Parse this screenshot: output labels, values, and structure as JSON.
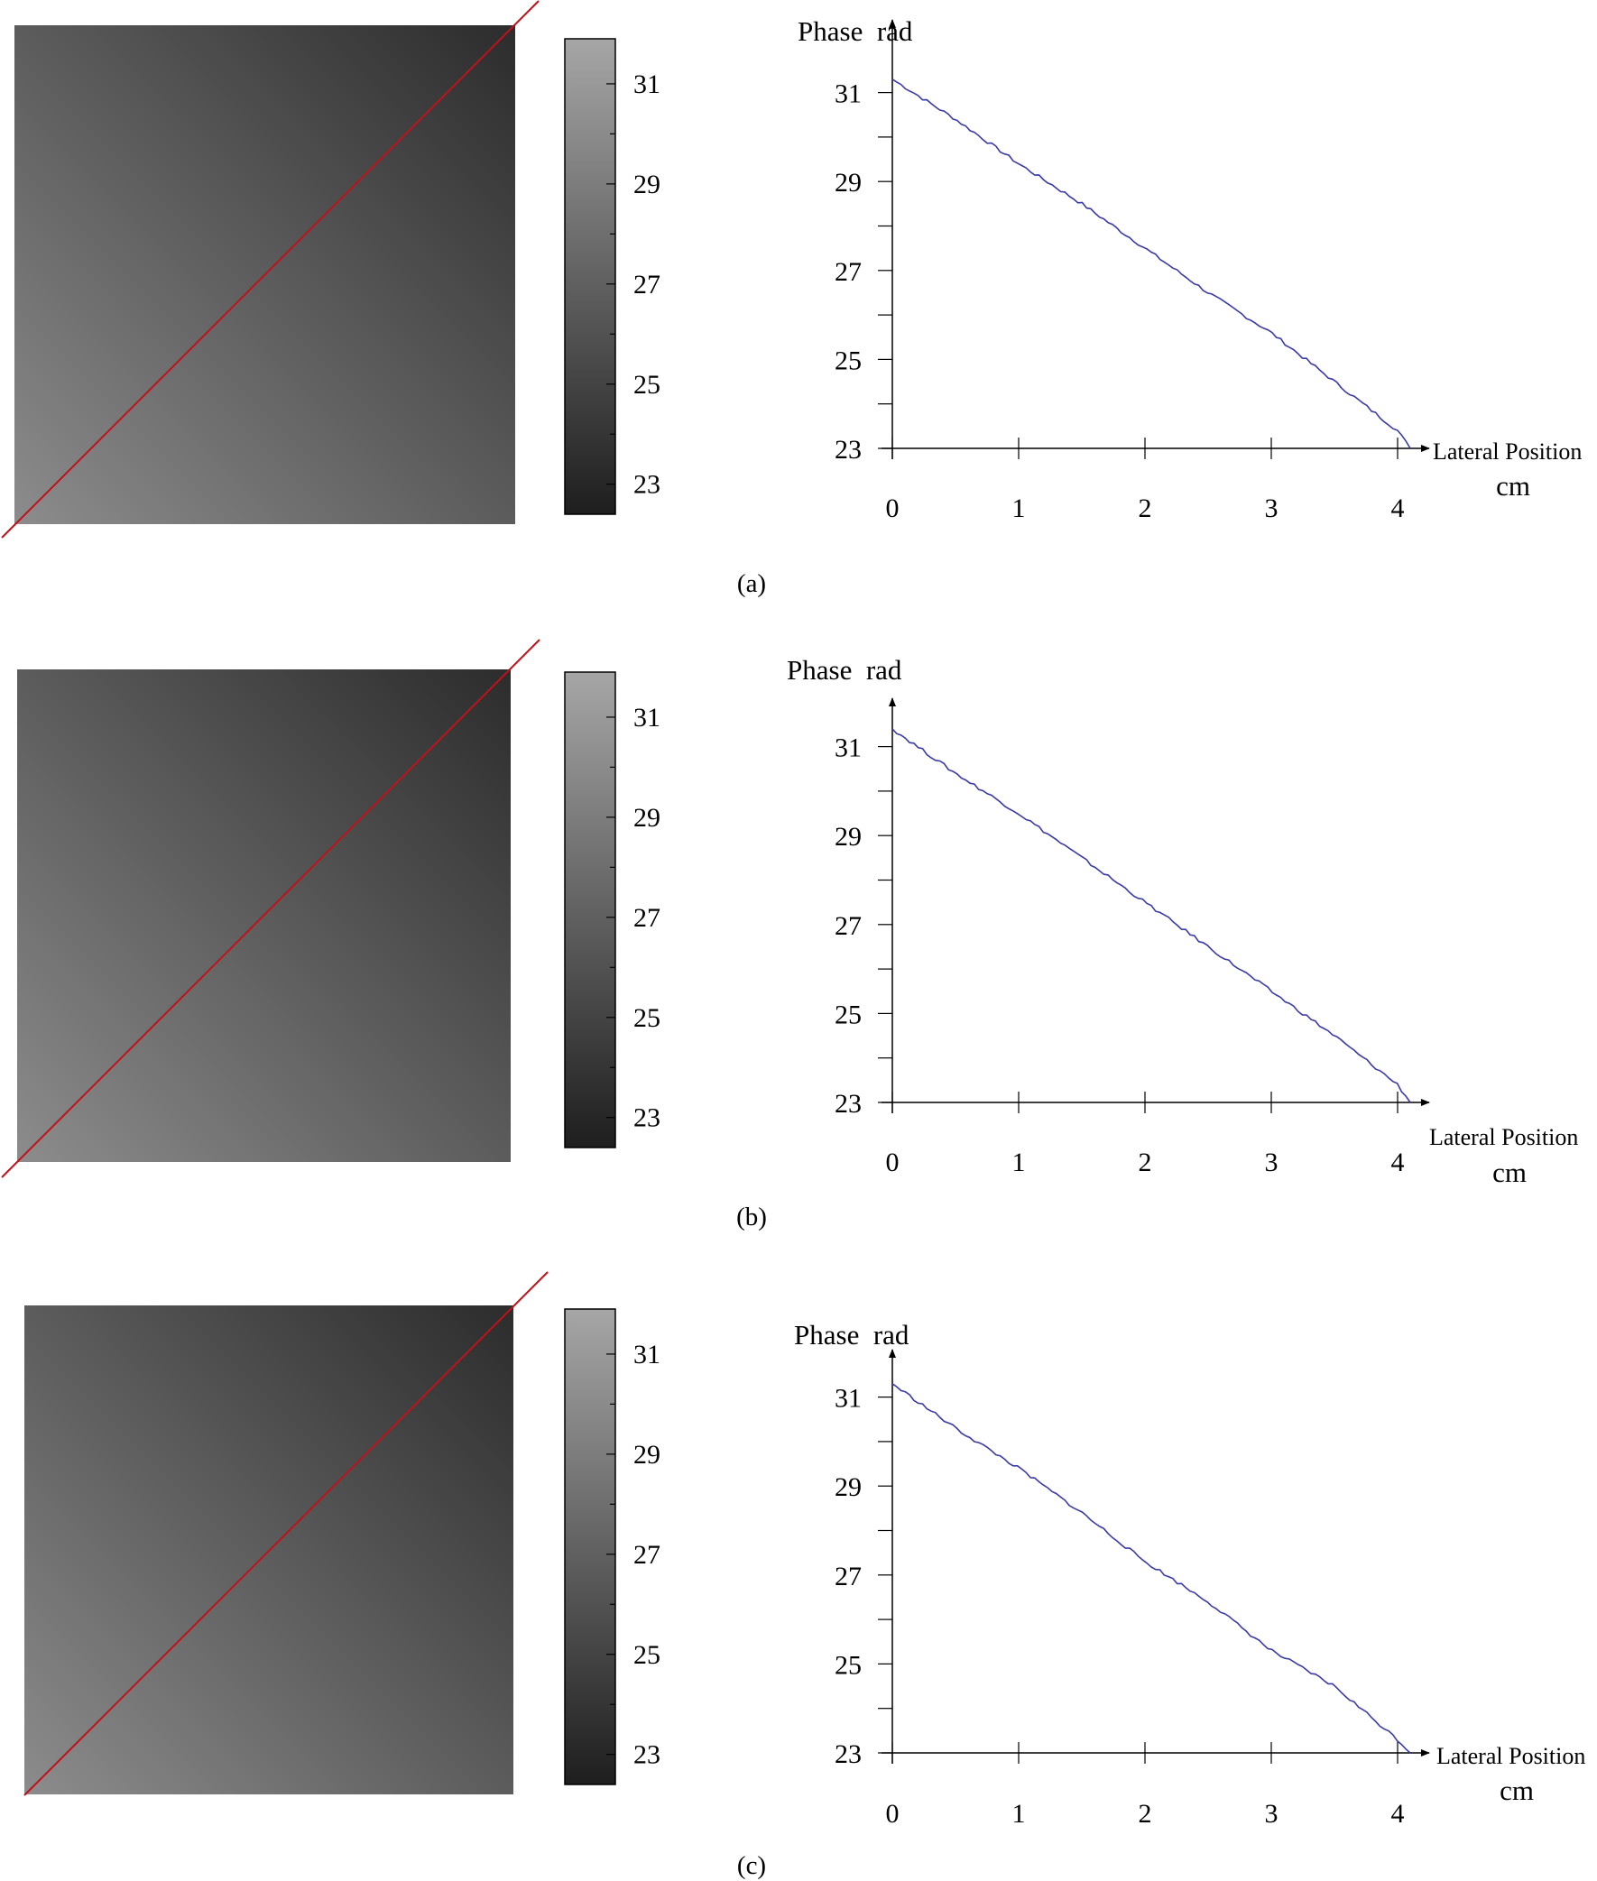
{
  "chart_data": [
    {
      "type": "line",
      "panel_label": "(a)",
      "ylabel": "Phase  rad",
      "xlabel": "Lateral Position",
      "xunit": "cm",
      "x_ticks": [
        0,
        1,
        2,
        3,
        4
      ],
      "y_ticks": [
        23,
        25,
        27,
        29,
        31
      ],
      "xlim": [
        0,
        4.1
      ],
      "ylim": [
        23,
        31.9
      ],
      "colorbar": {
        "ticks": [
          23,
          25,
          27,
          29,
          31
        ],
        "range": [
          22.4,
          31.9
        ]
      },
      "series": [
        {
          "color": "#3a3aa8",
          "x": [
            0,
            0.5,
            1.0,
            1.5,
            2.0,
            2.5,
            3.0,
            3.5,
            4.0,
            4.1
          ],
          "y": [
            31.3,
            30.4,
            29.4,
            28.5,
            27.5,
            26.5,
            25.6,
            24.5,
            23.4,
            23.0
          ]
        }
      ]
    },
    {
      "type": "line",
      "panel_label": "(b)",
      "ylabel": "Phase  rad",
      "xlabel": "Lateral Position",
      "xunit": "cm",
      "x_ticks": [
        0,
        1,
        2,
        3,
        4
      ],
      "y_ticks": [
        23,
        25,
        27,
        29,
        31
      ],
      "xlim": [
        0,
        4.1
      ],
      "ylim": [
        23,
        31.9
      ],
      "colorbar": {
        "ticks": [
          23,
          25,
          27,
          29,
          31
        ],
        "range": [
          22.4,
          31.9
        ]
      },
      "series": [
        {
          "color": "#3a3aa8",
          "x": [
            0,
            0.5,
            1.0,
            1.5,
            2.0,
            2.5,
            3.0,
            3.5,
            4.0,
            4.1
          ],
          "y": [
            31.4,
            30.4,
            29.5,
            28.5,
            27.5,
            26.5,
            25.5,
            24.5,
            23.4,
            23.0
          ]
        }
      ]
    },
    {
      "type": "line",
      "panel_label": "(c)",
      "ylabel": "Phase  rad",
      "xlabel": "Lateral Position",
      "xunit": "cm",
      "x_ticks": [
        0,
        1,
        2,
        3,
        4
      ],
      "y_ticks": [
        23,
        25,
        27,
        29,
        31
      ],
      "xlim": [
        0,
        4.1
      ],
      "ylim": [
        23,
        31.9
      ],
      "colorbar": {
        "ticks": [
          23,
          25,
          27,
          29,
          31
        ],
        "range": [
          22.4,
          31.9
        ]
      },
      "series": [
        {
          "color": "#3a3aa8",
          "x": [
            0,
            0.5,
            1.0,
            1.5,
            2.0,
            2.5,
            3.0,
            3.5,
            4.0,
            4.1
          ],
          "y": [
            31.3,
            30.3,
            29.4,
            28.4,
            27.3,
            26.4,
            25.3,
            24.5,
            23.3,
            23.0
          ]
        }
      ]
    }
  ],
  "colors": {
    "red_line": "#c0121a",
    "curve": "#3a3aa8",
    "image_light": "#8c8c8c",
    "image_dark": "#2c2c2c",
    "colorbar_top": "#a6a6a6",
    "colorbar_bottom": "#1e1e1e"
  }
}
